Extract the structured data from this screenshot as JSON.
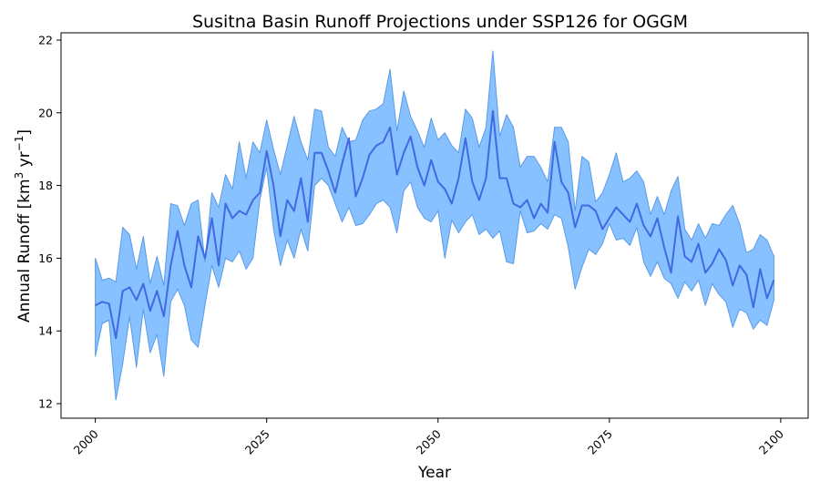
{
  "chart_data": {
    "type": "area",
    "title": "Susitna Basin Runoff Projections under SSP126 for OGGM",
    "xlabel": "Year",
    "ylabel": {
      "prefix": "Annual Runoff [km",
      "sup1": "3",
      "middle": " yr",
      "sup2": "−1",
      "suffix": "]"
    },
    "xlim": [
      1995,
      2104
    ],
    "ylim": [
      11.6,
      22.2
    ],
    "xticks": [
      2000,
      2025,
      2050,
      2075,
      2100
    ],
    "yticks": [
      12,
      14,
      16,
      18,
      20,
      22
    ],
    "grid": false,
    "colors": {
      "line": "#4169e1",
      "fill": "#87c1ff",
      "fill_edge": "#5a9be6"
    },
    "x": [
      2000,
      2001,
      2002,
      2003,
      2004,
      2005,
      2006,
      2007,
      2008,
      2009,
      2010,
      2011,
      2012,
      2013,
      2014,
      2015,
      2016,
      2017,
      2018,
      2019,
      2020,
      2021,
      2022,
      2023,
      2024,
      2025,
      2026,
      2027,
      2028,
      2029,
      2030,
      2031,
      2032,
      2033,
      2034,
      2035,
      2036,
      2037,
      2038,
      2039,
      2040,
      2041,
      2042,
      2043,
      2044,
      2045,
      2046,
      2047,
      2048,
      2049,
      2050,
      2051,
      2052,
      2053,
      2054,
      2055,
      2056,
      2057,
      2058,
      2059,
      2060,
      2061,
      2062,
      2063,
      2064,
      2065,
      2066,
      2067,
      2068,
      2069,
      2070,
      2071,
      2072,
      2073,
      2074,
      2075,
      2076,
      2077,
      2078,
      2079,
      2080,
      2081,
      2082,
      2083,
      2084,
      2085,
      2086,
      2087,
      2088,
      2089,
      2090,
      2091,
      2092,
      2093,
      2094,
      2095,
      2096,
      2097,
      2098,
      2099
    ],
    "series": [
      {
        "role": "mean",
        "values": [
          14.7,
          14.8,
          14.75,
          13.8,
          15.1,
          15.2,
          14.85,
          15.3,
          14.55,
          15.1,
          14.4,
          15.8,
          16.75,
          15.8,
          15.2,
          16.6,
          16.0,
          17.1,
          15.8,
          17.5,
          17.1,
          17.3,
          17.2,
          17.6,
          17.8,
          18.95,
          18.0,
          16.6,
          17.6,
          17.3,
          18.2,
          17.0,
          18.9,
          18.9,
          18.4,
          17.8,
          18.6,
          19.3,
          17.7,
          18.2,
          18.85,
          19.1,
          19.2,
          19.6,
          18.3,
          18.9,
          19.35,
          18.5,
          18.0,
          18.7,
          18.1,
          17.9,
          17.5,
          18.2,
          19.3,
          18.1,
          17.6,
          18.2,
          20.05,
          18.2,
          18.2,
          17.5,
          17.4,
          17.6,
          17.1,
          17.5,
          17.25,
          19.2,
          18.1,
          17.8,
          16.85,
          17.45,
          17.45,
          17.3,
          16.8,
          17.1,
          17.4,
          17.2,
          17.0,
          17.5,
          16.9,
          16.6,
          17.1,
          16.3,
          15.6,
          17.15,
          16.05,
          15.9,
          16.4,
          15.6,
          15.85,
          16.25,
          15.95,
          15.25,
          15.8,
          15.55,
          14.65,
          15.7,
          14.9,
          15.4
        ]
      },
      {
        "role": "upper",
        "values": [
          16.0,
          15.4,
          15.45,
          15.35,
          16.85,
          16.65,
          15.7,
          16.6,
          15.3,
          16.05,
          15.25,
          17.5,
          17.45,
          16.9,
          17.5,
          17.6,
          15.9,
          17.8,
          17.4,
          18.3,
          17.9,
          19.2,
          18.2,
          19.2,
          18.9,
          19.8,
          19.0,
          18.3,
          19.1,
          19.9,
          19.2,
          18.7,
          20.1,
          20.05,
          19.05,
          18.8,
          19.6,
          19.2,
          19.25,
          19.8,
          20.05,
          20.1,
          20.25,
          21.2,
          19.5,
          20.6,
          19.9,
          19.5,
          19.05,
          19.85,
          19.25,
          19.45,
          19.1,
          18.9,
          20.1,
          19.85,
          19.05,
          19.6,
          21.7,
          19.35,
          19.95,
          19.6,
          18.5,
          18.8,
          18.8,
          18.5,
          18.1,
          19.6,
          19.6,
          19.2,
          17.3,
          18.8,
          18.65,
          17.55,
          17.8,
          18.3,
          18.9,
          18.1,
          18.2,
          18.4,
          18.1,
          17.2,
          17.7,
          17.2,
          17.85,
          18.25,
          16.8,
          16.5,
          16.95,
          16.55,
          16.95,
          16.9,
          17.2,
          17.45,
          16.95,
          16.15,
          16.25,
          16.65,
          16.5,
          16.05
        ]
      },
      {
        "role": "lower",
        "values": [
          13.3,
          14.2,
          14.3,
          12.1,
          13.1,
          14.4,
          13.0,
          14.6,
          13.4,
          13.9,
          12.75,
          14.8,
          15.15,
          14.7,
          13.75,
          13.55,
          14.7,
          15.8,
          15.2,
          16.0,
          15.9,
          16.2,
          15.7,
          16.0,
          17.6,
          18.5,
          16.8,
          15.8,
          16.5,
          16.0,
          16.8,
          16.2,
          18.0,
          18.2,
          18.0,
          17.5,
          17.0,
          17.4,
          16.9,
          16.95,
          17.2,
          17.5,
          17.6,
          17.4,
          16.7,
          17.85,
          18.1,
          17.4,
          17.1,
          17.0,
          17.3,
          16.0,
          17.05,
          16.7,
          17.0,
          17.2,
          16.65,
          16.8,
          16.55,
          16.75,
          15.9,
          15.85,
          17.3,
          16.7,
          16.75,
          16.95,
          16.8,
          17.2,
          17.1,
          16.3,
          15.15,
          15.75,
          16.25,
          16.1,
          16.4,
          16.95,
          16.5,
          16.55,
          16.35,
          16.85,
          15.9,
          15.5,
          15.9,
          15.45,
          15.3,
          14.9,
          15.35,
          15.1,
          15.4,
          14.7,
          15.3,
          15.0,
          14.8,
          14.1,
          14.6,
          14.5,
          14.05,
          14.3,
          14.15,
          14.85
        ]
      }
    ]
  }
}
